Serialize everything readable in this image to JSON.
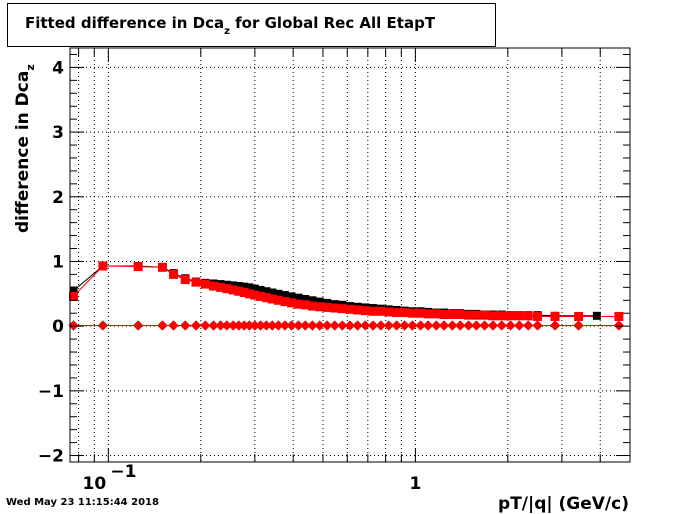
{
  "title": {
    "main": "Fitted difference in Dca",
    "sub": "z",
    "suffix": " for Global Rec All EtapT"
  },
  "timestamp": "Wed May 23 11:15:44 2018",
  "chart_data": {
    "type": "scatter",
    "title": "Fitted difference in Dca_z for Global Rec All EtapT",
    "xlabel": "pT/|q| (GeV/c)",
    "ylabel": "difference in Dca",
    "ylabel_sub": "z",
    "xscale": "log",
    "xlim": [
      0.075,
      5.0
    ],
    "ylim": [
      -2.1,
      4.3
    ],
    "grid": true,
    "y_ticks": [
      -2,
      -1,
      0,
      1,
      2,
      3,
      4
    ],
    "y_tick_labels": [
      "−2",
      "−1",
      "0",
      "1",
      "2",
      "3",
      "4"
    ],
    "x_tick_labels": [
      {
        "value": 0.1,
        "base": "10",
        "exp": "−1"
      },
      {
        "value": 1,
        "base": "1",
        "exp": ""
      }
    ],
    "series": [
      {
        "color": "#000000",
        "marker": "square",
        "x": [
          0.077,
          0.096,
          0.125,
          0.15,
          0.163,
          0.178,
          0.193,
          0.207,
          0.22,
          0.232,
          0.243,
          0.255,
          0.266,
          0.277,
          0.288,
          0.3,
          0.313,
          0.327,
          0.342,
          0.358,
          0.376,
          0.395,
          0.416,
          0.438,
          0.462,
          0.488,
          0.516,
          0.546,
          0.578,
          0.612,
          0.648,
          0.687,
          0.728,
          0.772,
          0.819,
          0.869,
          0.922,
          0.978,
          1.04,
          1.1,
          1.17,
          1.24,
          1.32,
          1.4,
          1.49,
          1.58,
          1.68,
          1.79,
          1.91,
          2.04,
          2.18,
          2.33,
          2.5,
          2.85,
          3.9
        ],
        "y": [
          0.55,
          0.93,
          0.93,
          0.91,
          0.82,
          0.74,
          0.69,
          0.67,
          0.66,
          0.65,
          0.64,
          0.63,
          0.62,
          0.61,
          0.6,
          0.58,
          0.56,
          0.54,
          0.52,
          0.5,
          0.48,
          0.46,
          0.44,
          0.42,
          0.4,
          0.38,
          0.36,
          0.34,
          0.33,
          0.31,
          0.3,
          0.29,
          0.28,
          0.27,
          0.26,
          0.25,
          0.24,
          0.23,
          0.23,
          0.22,
          0.21,
          0.21,
          0.2,
          0.2,
          0.19,
          0.19,
          0.18,
          0.18,
          0.18,
          0.17,
          0.17,
          0.17,
          0.17,
          0.16,
          0.16
        ]
      },
      {
        "color": "#ff0000",
        "marker": "square",
        "x": [
          0.077,
          0.096,
          0.125,
          0.15,
          0.163,
          0.178,
          0.193,
          0.207,
          0.22,
          0.232,
          0.243,
          0.255,
          0.266,
          0.277,
          0.288,
          0.3,
          0.313,
          0.327,
          0.342,
          0.358,
          0.376,
          0.395,
          0.416,
          0.438,
          0.462,
          0.488,
          0.516,
          0.546,
          0.578,
          0.612,
          0.648,
          0.687,
          0.728,
          0.772,
          0.819,
          0.869,
          0.922,
          0.978,
          1.04,
          1.1,
          1.17,
          1.24,
          1.32,
          1.4,
          1.49,
          1.58,
          1.68,
          1.79,
          1.91,
          2.04,
          2.18,
          2.33,
          2.5,
          2.85,
          3.4,
          4.6
        ],
        "y": [
          0.46,
          0.93,
          0.92,
          0.91,
          0.8,
          0.72,
          0.68,
          0.65,
          0.62,
          0.6,
          0.58,
          0.56,
          0.54,
          0.52,
          0.5,
          0.48,
          0.46,
          0.44,
          0.42,
          0.4,
          0.38,
          0.36,
          0.34,
          0.33,
          0.31,
          0.3,
          0.29,
          0.28,
          0.27,
          0.26,
          0.25,
          0.24,
          0.23,
          0.23,
          0.22,
          0.21,
          0.21,
          0.2,
          0.2,
          0.19,
          0.19,
          0.18,
          0.18,
          0.18,
          0.17,
          0.17,
          0.17,
          0.16,
          0.16,
          0.16,
          0.16,
          0.16,
          0.15,
          0.15,
          0.15,
          0.15
        ]
      },
      {
        "color": "#000000",
        "marker": "diamond",
        "x": [
          0.077,
          0.096,
          0.125,
          0.15,
          0.163,
          0.178,
          0.193,
          0.207,
          0.22,
          0.232,
          0.243,
          0.255,
          0.266,
          0.277,
          0.288,
          0.3,
          0.313,
          0.327,
          0.342,
          0.358,
          0.376,
          0.395,
          0.416,
          0.438,
          0.462,
          0.488,
          0.516,
          0.546,
          0.578,
          0.612,
          0.648,
          0.687,
          0.728,
          0.772,
          0.819,
          0.869,
          0.922,
          0.978,
          1.04,
          1.1,
          1.17,
          1.24,
          1.32,
          1.4,
          1.49,
          1.58,
          1.68,
          1.79,
          1.91,
          2.04,
          2.18,
          2.33,
          2.5,
          2.85,
          3.4,
          4.6
        ],
        "y": [
          0.01,
          0.01,
          0.01,
          0.01,
          0.01,
          0.01,
          0.01,
          0.01,
          0.01,
          0.01,
          0.01,
          0.01,
          0.01,
          0.01,
          0.01,
          0.01,
          0.01,
          0.01,
          0.01,
          0.01,
          0.01,
          0.01,
          0.01,
          0.01,
          0.01,
          0.01,
          0.01,
          0.01,
          0.01,
          0.01,
          0.01,
          0.01,
          0.01,
          0.01,
          0.01,
          0.01,
          0.01,
          0.01,
          0.01,
          0.01,
          0.01,
          0.01,
          0.01,
          0.01,
          0.01,
          0.01,
          0.01,
          0.01,
          0.01,
          0.01,
          0.01,
          0.01,
          0.01,
          0.01,
          0.01,
          0.01
        ]
      },
      {
        "color": "#ff0000",
        "marker": "diamond",
        "x": [
          0.077,
          0.096,
          0.125,
          0.15,
          0.163,
          0.178,
          0.193,
          0.207,
          0.22,
          0.232,
          0.243,
          0.255,
          0.266,
          0.277,
          0.288,
          0.3,
          0.313,
          0.327,
          0.342,
          0.358,
          0.376,
          0.395,
          0.416,
          0.438,
          0.462,
          0.488,
          0.516,
          0.546,
          0.578,
          0.612,
          0.648,
          0.687,
          0.728,
          0.772,
          0.819,
          0.869,
          0.922,
          0.978,
          1.04,
          1.1,
          1.17,
          1.24,
          1.32,
          1.4,
          1.49,
          1.58,
          1.68,
          1.79,
          1.91,
          2.04,
          2.18,
          2.33,
          2.5,
          2.85,
          3.4,
          4.6
        ],
        "y": [
          0.01,
          0.01,
          0.01,
          0.01,
          0.01,
          0.01,
          0.01,
          0.01,
          0.01,
          0.01,
          0.01,
          0.01,
          0.01,
          0.01,
          0.01,
          0.01,
          0.01,
          0.01,
          0.01,
          0.01,
          0.01,
          0.01,
          0.01,
          0.01,
          0.01,
          0.01,
          0.01,
          0.01,
          0.01,
          0.01,
          0.01,
          0.01,
          0.01,
          0.01,
          0.01,
          0.01,
          0.01,
          0.01,
          0.01,
          0.01,
          0.01,
          0.01,
          0.01,
          0.01,
          0.01,
          0.01,
          0.01,
          0.01,
          0.01,
          0.01,
          0.01,
          0.01,
          0.01,
          0.01,
          0.01,
          0.01
        ]
      }
    ]
  }
}
